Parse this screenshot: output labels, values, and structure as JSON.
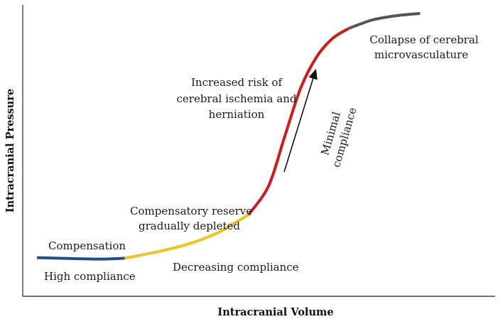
{
  "chart_data": {
    "type": "line",
    "title": "",
    "xlabel": "Intracranial Volume",
    "ylabel": "Intracranial Pressure",
    "xlim": [
      0,
      100
    ],
    "ylim": [
      0,
      100
    ],
    "grid": false,
    "legend": "none",
    "series": [
      {
        "color": "#1f4e8c",
        "x": [
          0,
          8,
          16,
          22
        ],
        "y": [
          13,
          12.7,
          12.5,
          12.8
        ]
      },
      {
        "color": "#f2c21f",
        "x": [
          22,
          30,
          38,
          45,
          50,
          53
        ],
        "y": [
          12.8,
          15.0,
          17.8,
          21.5,
          25.5,
          28.0
        ]
      },
      {
        "color": "#d11a1a",
        "x": [
          53,
          58,
          62,
          66,
          70,
          74,
          78
        ],
        "y": [
          28.0,
          38.0,
          55.0,
          72.0,
          83.0,
          89.5,
          93.0
        ]
      },
      {
        "color": "#555555",
        "x": [
          78,
          84,
          90,
          96
        ],
        "y": [
          93.0,
          96.0,
          97.5,
          98.3
        ]
      }
    ],
    "arrow_color": "#111111",
    "annotations": {
      "compensation": "Compensation",
      "high_compliance": "High compliance",
      "decreasing_compliance": "Decreasing compliance",
      "reserve_line1": "Compensatory reserve",
      "reserve_line2": "gradually depleted",
      "risk_line1": "Increased risk of",
      "risk_line2": "cerebral ischemia and",
      "risk_line3": "herniation",
      "minimal_line1": "Minimal",
      "minimal_line2": "compliance",
      "collapse_line1": "Collapse of cerebral",
      "collapse_line2": "microvasculature"
    }
  }
}
